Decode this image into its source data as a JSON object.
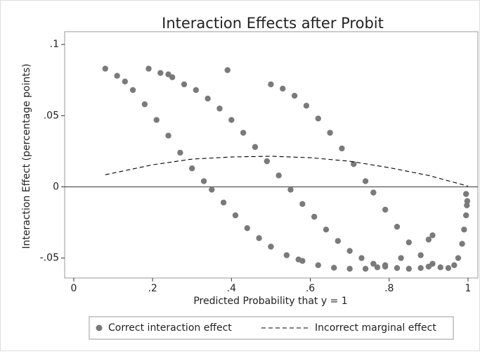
{
  "chart_data": {
    "type": "scatter",
    "title": "Interaction Effects after Probit",
    "xlabel": "Predicted Probability that y = 1",
    "ylabel": "Interaction Effect (percentage points)",
    "xlim": [
      -0.023,
      1.025
    ],
    "ylim": [
      -0.064,
      0.109
    ],
    "xticks": [
      0,
      {
        "value": 0.2,
        "label": ".2"
      },
      {
        "value": 0.4,
        "label": ".4"
      },
      {
        "value": 0.6,
        "label": ".6"
      },
      {
        "value": 0.8,
        "label": ".8"
      },
      1
    ],
    "yticks": [
      {
        "value": -0.05,
        "label": "-.05"
      },
      0,
      {
        "value": 0.05,
        "label": ".05"
      },
      {
        "value": 0.1,
        "label": ".1"
      }
    ],
    "yline": 0,
    "legend": "bottom",
    "series": [
      {
        "name": "Correct interaction effect",
        "color": "#7a7a7a",
        "marker": "circle",
        "x": [
          0.11,
          0.13,
          0.15,
          0.18,
          0.21,
          0.24,
          0.27,
          0.3,
          0.33,
          0.35,
          0.38,
          0.41,
          0.44,
          0.47,
          0.5,
          0.54,
          0.58,
          0.62,
          0.66,
          0.7,
          0.74,
          0.77,
          0.79,
          0.28,
          0.31,
          0.34,
          0.37,
          0.4,
          0.43,
          0.46,
          0.49,
          0.52,
          0.55,
          0.58,
          0.61,
          0.64,
          0.67,
          0.7,
          0.73,
          0.76,
          0.79,
          0.82,
          0.85,
          0.88,
          0.9,
          0.5,
          0.53,
          0.56,
          0.59,
          0.62,
          0.65,
          0.68,
          0.71,
          0.74,
          0.76,
          0.79,
          0.82,
          0.85,
          0.88,
          0.91,
          0.93,
          0.95,
          0.965,
          0.975,
          0.985,
          0.99,
          0.995,
          0.998,
          0.08,
          0.19,
          0.22,
          0.24,
          0.25,
          0.39,
          0.57,
          0.83,
          0.9,
          0.91,
          0.995,
          0.997
        ],
        "values": [
          0.078,
          0.074,
          0.068,
          0.058,
          0.047,
          0.036,
          0.024,
          0.013,
          0.004,
          -0.002,
          -0.011,
          -0.02,
          -0.029,
          -0.036,
          -0.042,
          -0.048,
          -0.052,
          -0.055,
          -0.0568,
          -0.0575,
          -0.0575,
          -0.0565,
          -0.055,
          0.072,
          0.068,
          0.062,
          0.055,
          0.047,
          0.038,
          0.028,
          0.018,
          0.008,
          -0.002,
          -0.012,
          -0.021,
          -0.03,
          -0.038,
          -0.045,
          -0.05,
          -0.054,
          -0.056,
          -0.057,
          -0.0575,
          -0.057,
          -0.056,
          0.072,
          0.069,
          0.064,
          0.057,
          0.048,
          0.038,
          0.027,
          0.016,
          0.004,
          -0.004,
          -0.016,
          -0.028,
          -0.039,
          -0.048,
          -0.054,
          -0.0565,
          -0.057,
          -0.055,
          -0.05,
          -0.04,
          -0.03,
          -0.02,
          -0.01,
          0.083,
          0.083,
          0.08,
          0.079,
          0.077,
          0.082,
          -0.051,
          -0.05,
          -0.037,
          -0.034,
          -0.005,
          -0.013
        ]
      },
      {
        "name": "Incorrect marginal effect",
        "color": "#000000",
        "line_style": "dashed",
        "x": [
          0.08,
          0.2,
          0.3,
          0.4,
          0.5,
          0.6,
          0.7,
          0.8,
          0.9,
          1
        ],
        "values": [
          0.0085,
          0.0155,
          0.0195,
          0.021,
          0.0215,
          0.0205,
          0.018,
          0.0135,
          0.008,
          0.0005
        ]
      }
    ]
  }
}
